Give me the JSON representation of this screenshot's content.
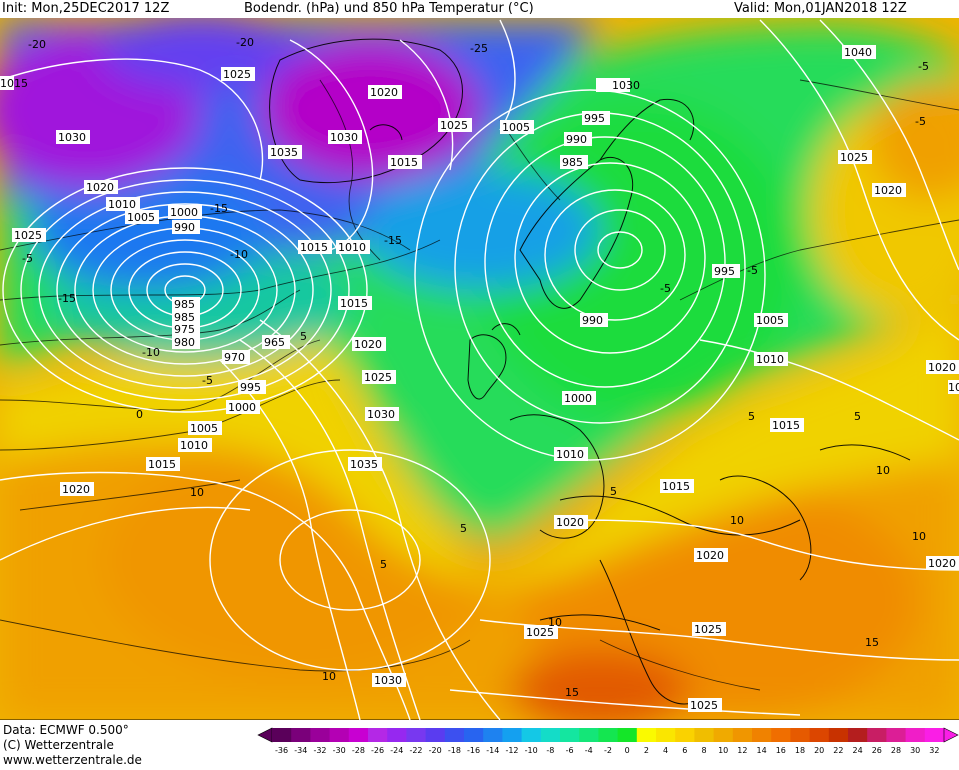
{
  "header": {
    "init_label": "Init: Mon,25DEC2017 12Z",
    "title": "Bodendr. (hPa) und 850 hPa Temperatur (°C)",
    "valid_label": "Valid: Mon,01JAN2018 12Z"
  },
  "footer": {
    "data_source": "Data: ECMWF  0.500°",
    "copyright": "(C) Wetterzentrale",
    "website": "www.wetterzentrale.de"
  },
  "pressure_labels": [
    "1040",
    "1030",
    "1025",
    "1020",
    "1015",
    "1010",
    "1005",
    "1000",
    "990",
    "985",
    "980",
    "975",
    "970",
    "965",
    "995",
    "1035",
    "1030",
    "1025",
    "1020",
    "1015",
    "1010",
    "1005",
    "1000",
    "990",
    "985",
    "995",
    "1000",
    "1005",
    "1010",
    "1015",
    "1020",
    "1025",
    "1030",
    "1035",
    "1020",
    "1025",
    "1020",
    "1015",
    "1010",
    "1005",
    "995",
    "1010",
    "1015",
    "1020",
    "1025",
    "1030",
    "1025",
    "1020",
    "1015",
    "1020",
    "1020",
    "1025",
    "1030",
    "1020",
    "1025",
    "1015",
    "990",
    "985",
    "1000",
    "1020",
    "1025"
  ],
  "temperature_labels": [
    "-20",
    "-25",
    "-20",
    "-15",
    "-10",
    "-5",
    "-15",
    "-10",
    "-5",
    "0",
    "5",
    "10",
    "-15",
    "-5",
    "-5",
    "-5",
    "5",
    "5",
    "10",
    "5",
    "10",
    "15",
    "-5",
    "10",
    "10",
    "15",
    "10",
    "5",
    "5"
  ],
  "colors": {
    "isobar": "#ffffff",
    "isotherm": "#000000",
    "label_bg": "#ffffff"
  },
  "color_scale": {
    "ticks": [
      "-36",
      "-34",
      "-32",
      "-30",
      "-28",
      "-26",
      "-24",
      "-22",
      "-20",
      "-18",
      "-16",
      "-14",
      "-12",
      "-10",
      "-8",
      "-6",
      "-4",
      "-2",
      "0",
      "2",
      "4",
      "6",
      "8",
      "10",
      "12",
      "14",
      "16",
      "18",
      "20",
      "22",
      "24",
      "26",
      "28",
      "30",
      "32"
    ],
    "colors": [
      "#5a005a",
      "#7a007a",
      "#9a009a",
      "#b400b4",
      "#c800d2",
      "#b428e6",
      "#9628f0",
      "#7838f0",
      "#5a3cf0",
      "#3c50f0",
      "#2864f0",
      "#1e82f0",
      "#14a0f0",
      "#14c8e6",
      "#14dcc8",
      "#14e6a0",
      "#14e678",
      "#14e650",
      "#14e628",
      "#fafa00",
      "#fae600",
      "#fad200",
      "#f0be00",
      "#f0aa00",
      "#f09600",
      "#f08200",
      "#f06e00",
      "#e65a00",
      "#dc4600",
      "#c83200",
      "#b41e1e",
      "#c81e64",
      "#dc1e96",
      "#f01ec8",
      "#fa1ee6"
    ]
  }
}
